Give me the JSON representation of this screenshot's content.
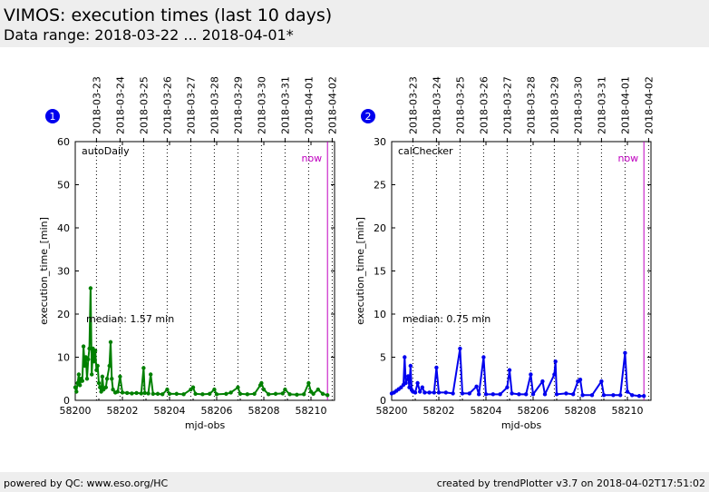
{
  "header": {
    "title": "VIMOS: execution times (last 10 days)",
    "subtitle": "Data range: 2018-03-22 ... 2018-04-01*"
  },
  "footer": {
    "left": "powered by QC: www.eso.org/HC",
    "right": "created by trendPlotter v3.7 on 2018-04-02T17:51:02"
  },
  "colors": {
    "now_line": "#c000c0",
    "badge": "#0000ee"
  },
  "chart_data": [
    {
      "type": "line",
      "badge": "1",
      "label": "autoDaily",
      "color": "#008000",
      "median_text": "median: 1.57 min",
      "now_label": "now",
      "now_x": 58210.7,
      "xlabel": "mjd-obs",
      "ylabel": "execution_time_[min]",
      "xlim": [
        58200,
        58211
      ],
      "ylim": [
        0,
        60
      ],
      "xticks": [
        "58200",
        "58202",
        "58204",
        "58206",
        "58208",
        "58210"
      ],
      "yticks": [
        "0",
        "10",
        "20",
        "30",
        "40",
        "50",
        "60"
      ],
      "top_ticks": [
        {
          "label": "2018-03-23",
          "x": 58200.9
        },
        {
          "label": "2018-03-24",
          "x": 58201.9
        },
        {
          "label": "2018-03-25",
          "x": 58202.9
        },
        {
          "label": "2018-03-26",
          "x": 58203.9
        },
        {
          "label": "2018-03-27",
          "x": 58204.9
        },
        {
          "label": "2018-03-28",
          "x": 58205.9
        },
        {
          "label": "2018-03-29",
          "x": 58206.9
        },
        {
          "label": "2018-03-30",
          "x": 58207.9
        },
        {
          "label": "2018-03-31",
          "x": 58208.9
        },
        {
          "label": "2018-04-01",
          "x": 58209.9
        },
        {
          "label": "2018-04-02",
          "x": 58210.9
        }
      ],
      "grid": "vertical-dotted",
      "points": [
        [
          58200.0,
          3.0
        ],
        [
          58200.05,
          2.0
        ],
        [
          58200.1,
          4.0
        ],
        [
          58200.15,
          6.0
        ],
        [
          58200.2,
          3.5
        ],
        [
          58200.25,
          5.0
        ],
        [
          58200.3,
          4.5
        ],
        [
          58200.35,
          12.5
        ],
        [
          58200.4,
          8.0
        ],
        [
          58200.45,
          10.0
        ],
        [
          58200.5,
          5.0
        ],
        [
          58200.55,
          9.5
        ],
        [
          58200.6,
          12.0
        ],
        [
          58200.65,
          26.0
        ],
        [
          58200.7,
          6.0
        ],
        [
          58200.75,
          12.0
        ],
        [
          58200.8,
          9.0
        ],
        [
          58200.85,
          11.5
        ],
        [
          58200.9,
          7.0
        ],
        [
          58200.95,
          8.0
        ],
        [
          58201.0,
          4.0
        ],
        [
          58201.05,
          3.0
        ],
        [
          58201.1,
          2.0
        ],
        [
          58201.15,
          5.5
        ],
        [
          58201.2,
          2.5
        ],
        [
          58201.3,
          3.0
        ],
        [
          58201.35,
          5.0
        ],
        [
          58201.45,
          8.0
        ],
        [
          58201.5,
          13.5
        ],
        [
          58201.55,
          5.0
        ],
        [
          58201.6,
          2.5
        ],
        [
          58201.7,
          1.8
        ],
        [
          58201.8,
          2.0
        ],
        [
          58201.9,
          5.5
        ],
        [
          58202.0,
          1.8
        ],
        [
          58202.2,
          1.7
        ],
        [
          58202.4,
          1.6
        ],
        [
          58202.6,
          1.7
        ],
        [
          58202.8,
          1.6
        ],
        [
          58202.9,
          7.5
        ],
        [
          58202.95,
          1.7
        ],
        [
          58203.1,
          1.6
        ],
        [
          58203.2,
          6.0
        ],
        [
          58203.3,
          1.5
        ],
        [
          58203.5,
          1.5
        ],
        [
          58203.7,
          1.4
        ],
        [
          58203.9,
          2.5
        ],
        [
          58204.0,
          1.5
        ],
        [
          58204.3,
          1.5
        ],
        [
          58204.6,
          1.4
        ],
        [
          58204.9,
          2.5
        ],
        [
          58205.0,
          3.0
        ],
        [
          58205.1,
          1.5
        ],
        [
          58205.4,
          1.4
        ],
        [
          58205.7,
          1.5
        ],
        [
          58205.9,
          2.5
        ],
        [
          58206.0,
          1.4
        ],
        [
          58206.4,
          1.5
        ],
        [
          58206.6,
          1.8
        ],
        [
          58206.9,
          3.0
        ],
        [
          58207.0,
          1.5
        ],
        [
          58207.3,
          1.4
        ],
        [
          58207.6,
          1.5
        ],
        [
          58207.85,
          3.5
        ],
        [
          58207.9,
          4.0
        ],
        [
          58208.0,
          2.5
        ],
        [
          58208.2,
          1.4
        ],
        [
          58208.5,
          1.5
        ],
        [
          58208.8,
          1.6
        ],
        [
          58208.9,
          2.5
        ],
        [
          58209.1,
          1.4
        ],
        [
          58209.4,
          1.3
        ],
        [
          58209.7,
          1.4
        ],
        [
          58209.9,
          4.0
        ],
        [
          58210.0,
          2.0
        ],
        [
          58210.1,
          1.5
        ],
        [
          58210.3,
          2.5
        ],
        [
          58210.5,
          1.5
        ],
        [
          58210.7,
          1.2
        ]
      ]
    },
    {
      "type": "line",
      "badge": "2",
      "label": "calChecker",
      "color": "#0000ee",
      "median_text": "median: 0.75 min",
      "now_label": "now",
      "now_x": 58210.7,
      "xlabel": "mjd-obs",
      "ylabel": "execution_time_[min]",
      "xlim": [
        58200,
        58211
      ],
      "ylim": [
        0,
        30
      ],
      "xticks": [
        "58200",
        "58202",
        "58204",
        "58206",
        "58208",
        "58210"
      ],
      "yticks": [
        "0",
        "5",
        "10",
        "15",
        "20",
        "25",
        "30"
      ],
      "top_ticks": [
        {
          "label": "2018-03-23",
          "x": 58200.9
        },
        {
          "label": "2018-03-24",
          "x": 58201.9
        },
        {
          "label": "2018-03-25",
          "x": 58202.9
        },
        {
          "label": "2018-03-26",
          "x": 58203.9
        },
        {
          "label": "2018-03-27",
          "x": 58204.9
        },
        {
          "label": "2018-03-28",
          "x": 58205.9
        },
        {
          "label": "2018-03-29",
          "x": 58206.9
        },
        {
          "label": "2018-03-30",
          "x": 58207.9
        },
        {
          "label": "2018-03-31",
          "x": 58208.9
        },
        {
          "label": "2018-04-01",
          "x": 58209.9
        },
        {
          "label": "2018-04-02",
          "x": 58210.9
        }
      ],
      "grid": "vertical-dotted",
      "points": [
        [
          58200.0,
          0.8
        ],
        [
          58200.1,
          0.9
        ],
        [
          58200.2,
          1.1
        ],
        [
          58200.3,
          1.3
        ],
        [
          58200.4,
          1.5
        ],
        [
          58200.5,
          1.8
        ],
        [
          58200.55,
          5.0
        ],
        [
          58200.6,
          2.0
        ],
        [
          58200.7,
          2.8
        ],
        [
          58200.75,
          1.5
        ],
        [
          58200.8,
          4.0
        ],
        [
          58200.85,
          1.2
        ],
        [
          58200.9,
          1.0
        ],
        [
          58201.0,
          0.9
        ],
        [
          58201.1,
          2.0
        ],
        [
          58201.2,
          1.0
        ],
        [
          58201.3,
          1.5
        ],
        [
          58201.4,
          0.9
        ],
        [
          58201.6,
          0.9
        ],
        [
          58201.8,
          0.9
        ],
        [
          58201.9,
          3.8
        ],
        [
          58202.0,
          0.9
        ],
        [
          58202.3,
          0.9
        ],
        [
          58202.6,
          0.8
        ],
        [
          58202.9,
          6.0
        ],
        [
          58203.0,
          0.8
        ],
        [
          58203.3,
          0.8
        ],
        [
          58203.6,
          1.6
        ],
        [
          58203.7,
          0.7
        ],
        [
          58203.9,
          5.0
        ],
        [
          58204.0,
          0.7
        ],
        [
          58204.3,
          0.7
        ],
        [
          58204.6,
          0.7
        ],
        [
          58204.9,
          1.5
        ],
        [
          58205.0,
          3.5
        ],
        [
          58205.1,
          0.8
        ],
        [
          58205.4,
          0.7
        ],
        [
          58205.7,
          0.7
        ],
        [
          58205.9,
          3.0
        ],
        [
          58206.0,
          0.7
        ],
        [
          58206.4,
          2.2
        ],
        [
          58206.5,
          0.7
        ],
        [
          58206.9,
          3.0
        ],
        [
          58206.95,
          4.5
        ],
        [
          58207.0,
          0.7
        ],
        [
          58207.4,
          0.8
        ],
        [
          58207.7,
          0.7
        ],
        [
          58207.9,
          2.2
        ],
        [
          58208.0,
          2.4
        ],
        [
          58208.1,
          0.6
        ],
        [
          58208.5,
          0.6
        ],
        [
          58208.9,
          2.2
        ],
        [
          58209.0,
          0.6
        ],
        [
          58209.4,
          0.6
        ],
        [
          58209.7,
          0.6
        ],
        [
          58209.9,
          5.5
        ],
        [
          58210.0,
          1.0
        ],
        [
          58210.2,
          0.6
        ],
        [
          58210.5,
          0.5
        ],
        [
          58210.7,
          0.5
        ]
      ]
    }
  ]
}
